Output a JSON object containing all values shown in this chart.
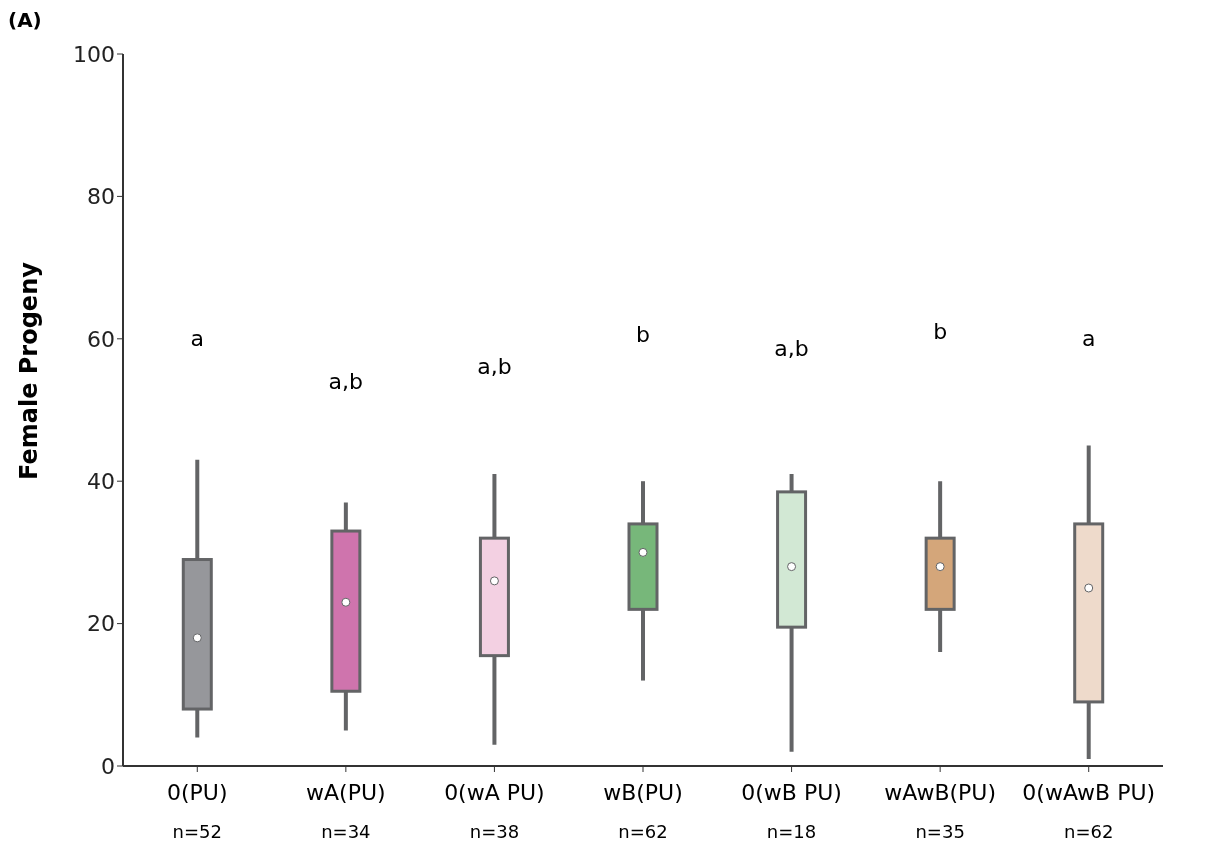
{
  "chart_data": {
    "type": "box",
    "title": "(A)",
    "ylabel": "Female Progeny",
    "categories": [
      "0(PU)",
      "wA(PU)",
      "0(wA PU)",
      "wB(PU)",
      "0(wB PU)",
      "wAwB(PU)",
      "0(wAwB PU)"
    ],
    "colors": [
      "#96979b",
      "#cf74ad",
      "#f3d0e2",
      "#77b77a",
      "#d2e8d4",
      "#d4a67a",
      "#eedacb"
    ],
    "boxes": [
      {
        "low": 4,
        "q1": 8,
        "median": 18,
        "q3": 29,
        "high": 43
      },
      {
        "low": 5,
        "q1": 10.5,
        "median": 23,
        "q3": 33,
        "high": 37
      },
      {
        "low": 3,
        "q1": 15.5,
        "median": 26,
        "q3": 32,
        "high": 41
      },
      {
        "low": 12,
        "q1": 22,
        "median": 30,
        "q3": 34,
        "high": 40
      },
      {
        "low": 2,
        "q1": 19.5,
        "median": 28,
        "q3": 38.5,
        "high": 41
      },
      {
        "low": 16,
        "q1": 22,
        "median": 28,
        "q3": 32,
        "high": 40
      },
      {
        "low": 1,
        "q1": 9,
        "median": 25,
        "q3": 34,
        "high": 45
      }
    ],
    "ylim": [
      0,
      100
    ],
    "yticks": [
      0,
      20,
      40,
      60,
      80,
      100
    ],
    "grid": false,
    "annotations": [
      "a",
      "a,b",
      "a,b",
      "b",
      "a,b",
      "b",
      "a",
      "n=52",
      "n=34",
      "n=38",
      "n=62",
      "n=18",
      "n=35",
      "n=62"
    ]
  }
}
